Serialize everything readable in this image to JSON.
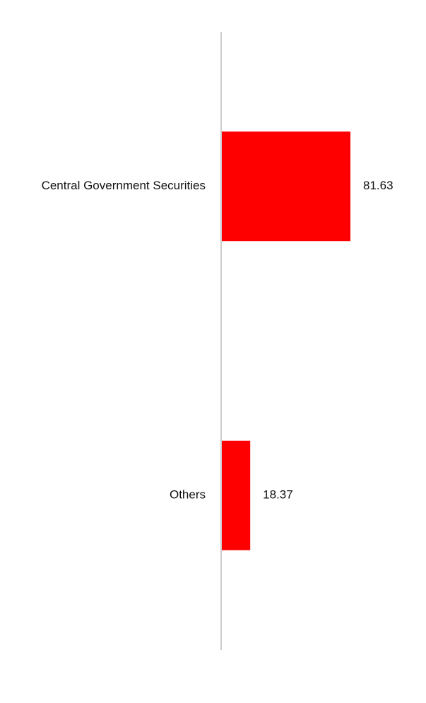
{
  "chart_data": {
    "type": "hbar",
    "categories": [
      "Central Government Securities",
      "Others"
    ],
    "values": [
      81.63,
      18.37
    ],
    "color": "#ff0000",
    "axis_color": "#cccccc"
  }
}
